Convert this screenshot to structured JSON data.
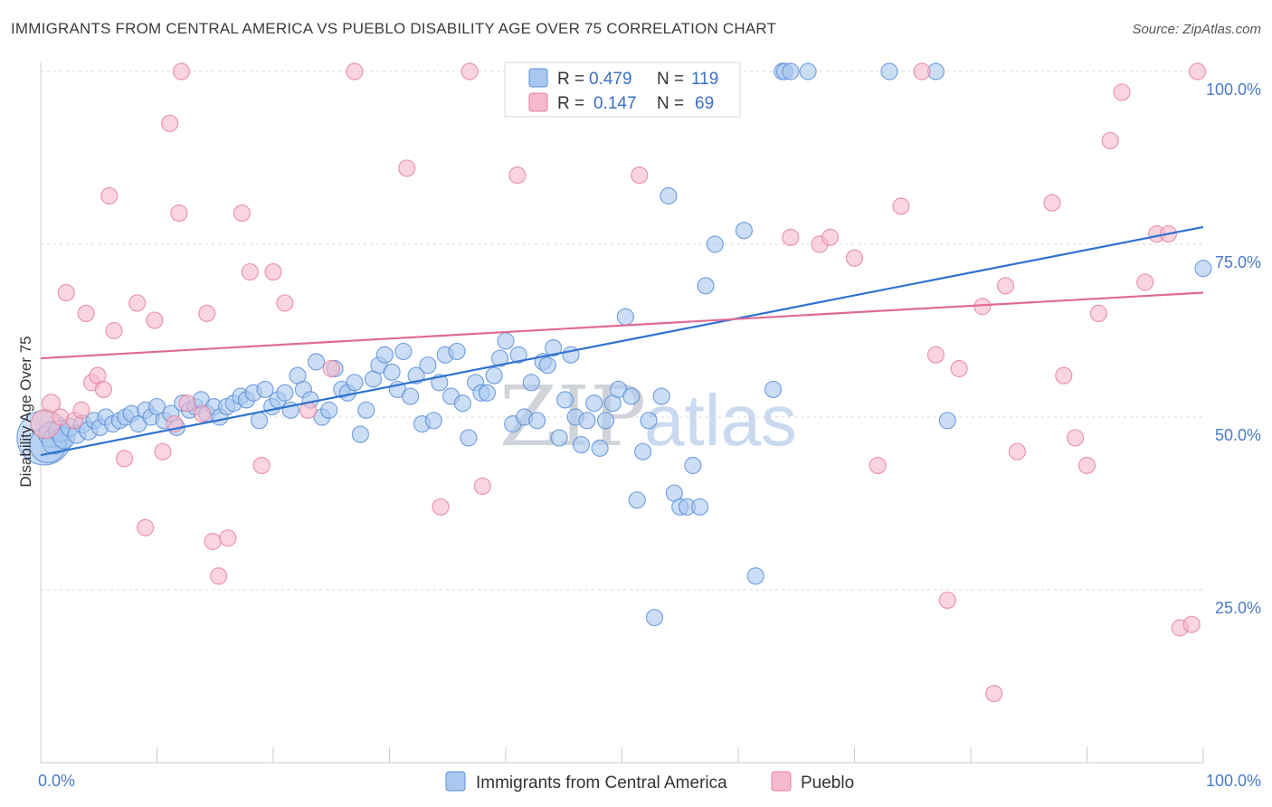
{
  "title": "IMMIGRANTS FROM CENTRAL AMERICA VS PUEBLO DISABILITY AGE OVER 75 CORRELATION CHART",
  "source": "Source: ZipAtlas.com",
  "watermark": {
    "zip": "ZIP",
    "atlas": "atlas"
  },
  "colors": {
    "blue_fill": "#a8c8f0",
    "blue_stroke": "#5b8fd6",
    "blue_line": "#2f72d0",
    "pink_fill": "#f7b9cc",
    "pink_stroke": "#e57fa0",
    "pink_line": "#e06a95",
    "grid": "#d9d9d9",
    "tick_text": "#4a7ac8"
  },
  "legend": {
    "r_label": "R =",
    "n_label": "N =",
    "series1": {
      "r": "0.479",
      "n": "119"
    },
    "series2": {
      "r": "0.147",
      "n": "69"
    }
  },
  "chart_data": {
    "type": "scatter",
    "xlabel": "",
    "ylabel": "Disability Age Over 75",
    "xlim": [
      0,
      100
    ],
    "ylim": [
      0,
      100
    ],
    "x_tick_labels": [
      "0.0%",
      "100.0%"
    ],
    "y_ticks": [
      25,
      50,
      75,
      100
    ],
    "y_tick_labels": [
      "25.0%",
      "50.0%",
      "75.0%",
      "100.0%"
    ],
    "grid": true,
    "legend_position": "bottom",
    "series": [
      {
        "name": "Immigrants from Central America",
        "color": "#a8c8f0",
        "trend": {
          "x": [
            0,
            100
          ],
          "y": [
            44.5,
            77.5
          ]
        },
        "points": [
          [
            0.3,
            47,
            30
          ],
          [
            0.6,
            46,
            20
          ],
          [
            0.9,
            47.5,
            14
          ],
          [
            1.2,
            46.5,
            14
          ],
          [
            1.6,
            48,
            12
          ],
          [
            2,
            47,
            12
          ],
          [
            2.5,
            48.5,
            10
          ],
          [
            3.1,
            47.5,
            10
          ],
          [
            3.6,
            49,
            10
          ],
          [
            4.1,
            48,
            10
          ],
          [
            4.6,
            49.5,
            9
          ],
          [
            5.1,
            48.5,
            9
          ],
          [
            5.6,
            50,
            9
          ],
          [
            6.2,
            49,
            9
          ],
          [
            6.8,
            49.5,
            9
          ],
          [
            7.3,
            50,
            9
          ],
          [
            7.8,
            50.5,
            9
          ],
          [
            8.4,
            49,
            9
          ],
          [
            9,
            51,
            9
          ],
          [
            9.5,
            50,
            9
          ],
          [
            10,
            51.5,
            9
          ],
          [
            10.6,
            49.5,
            9
          ],
          [
            11.2,
            50.5,
            9
          ],
          [
            11.7,
            48.5,
            9
          ],
          [
            12.2,
            52,
            9
          ],
          [
            12.8,
            51,
            9
          ],
          [
            13.3,
            51.5,
            9
          ],
          [
            13.8,
            52.5,
            9
          ],
          [
            14.3,
            50.5,
            9
          ],
          [
            14.9,
            51.5,
            9
          ],
          [
            15.4,
            50,
            9
          ],
          [
            16,
            51.5,
            9
          ],
          [
            16.6,
            52,
            9
          ],
          [
            17.2,
            53,
            9
          ],
          [
            17.7,
            52.5,
            9
          ],
          [
            18.3,
            53.5,
            9
          ],
          [
            18.8,
            49.5,
            9
          ],
          [
            19.3,
            54,
            9
          ],
          [
            19.9,
            51.5,
            9
          ],
          [
            20.4,
            52.5,
            9
          ],
          [
            21,
            53.5,
            9
          ],
          [
            21.5,
            51,
            9
          ],
          [
            22.1,
            56,
            9
          ],
          [
            22.6,
            54,
            9
          ],
          [
            23.2,
            52.5,
            9
          ],
          [
            23.7,
            58,
            9
          ],
          [
            24.2,
            50,
            9
          ],
          [
            24.8,
            51,
            9
          ],
          [
            25.3,
            57,
            9
          ],
          [
            25.9,
            54,
            9
          ],
          [
            26.4,
            53.5,
            9
          ],
          [
            27,
            55,
            9
          ],
          [
            27.5,
            47.5,
            9
          ],
          [
            28,
            51,
            9
          ],
          [
            28.6,
            55.5,
            9
          ],
          [
            29.1,
            57.5,
            9
          ],
          [
            29.6,
            59,
            9
          ],
          [
            30.2,
            56.5,
            9
          ],
          [
            30.7,
            54,
            9
          ],
          [
            31.2,
            59.5,
            9
          ],
          [
            31.8,
            53,
            9
          ],
          [
            32.3,
            56,
            9
          ],
          [
            32.8,
            49,
            9
          ],
          [
            33.3,
            57.5,
            9
          ],
          [
            33.8,
            49.5,
            9
          ],
          [
            34.3,
            55,
            9
          ],
          [
            34.8,
            59,
            9
          ],
          [
            35.3,
            53,
            9
          ],
          [
            35.8,
            59.5,
            9
          ],
          [
            36.3,
            52,
            9
          ],
          [
            36.8,
            47,
            9
          ],
          [
            37.4,
            55,
            9
          ],
          [
            37.9,
            53.5,
            9
          ],
          [
            38.4,
            53.5,
            9
          ],
          [
            39,
            56,
            9
          ],
          [
            39.5,
            58.5,
            9
          ],
          [
            40,
            61,
            9
          ],
          [
            40.6,
            49,
            9
          ],
          [
            41.1,
            59,
            9
          ],
          [
            41.6,
            50,
            9
          ],
          [
            42.2,
            55,
            9
          ],
          [
            42.7,
            49.5,
            9
          ],
          [
            43.2,
            58,
            9
          ],
          [
            43.6,
            57.5,
            9
          ],
          [
            44.1,
            60,
            9
          ],
          [
            44.6,
            47,
            9
          ],
          [
            45.1,
            52.5,
            9
          ],
          [
            45.6,
            59,
            9
          ],
          [
            46,
            50,
            9
          ],
          [
            46.5,
            46,
            9
          ],
          [
            47,
            49.5,
            9
          ],
          [
            47.6,
            52,
            9
          ],
          [
            48.1,
            45.5,
            9
          ],
          [
            48.6,
            49.5,
            9
          ],
          [
            49.2,
            52,
            9
          ],
          [
            49.7,
            54,
            9
          ],
          [
            50.3,
            64.5,
            9
          ],
          [
            50.8,
            53,
            9
          ],
          [
            51.3,
            38,
            9
          ],
          [
            51.8,
            45,
            9
          ],
          [
            52.3,
            49.5,
            9
          ],
          [
            52.8,
            21,
            9
          ],
          [
            53.4,
            53,
            9
          ],
          [
            54,
            82,
            9
          ],
          [
            54.5,
            39,
            9
          ],
          [
            55,
            37,
            9
          ],
          [
            55.6,
            37,
            9
          ],
          [
            56.1,
            43,
            9
          ],
          [
            56.7,
            37,
            9
          ],
          [
            57.2,
            69,
            9
          ],
          [
            58,
            75,
            9
          ],
          [
            59,
            100,
            9
          ],
          [
            60.5,
            77,
            9
          ],
          [
            61.5,
            27,
            9
          ],
          [
            63,
            54,
            9
          ],
          [
            63.8,
            100,
            9
          ],
          [
            64,
            100,
            9
          ],
          [
            64.5,
            100,
            9
          ],
          [
            66,
            100,
            9
          ],
          [
            73,
            100,
            9
          ],
          [
            77,
            100,
            9
          ],
          [
            78,
            49.5,
            9
          ],
          [
            100,
            71.5,
            9
          ]
        ]
      },
      {
        "name": "Pueblo",
        "color": "#f7b9cc",
        "trend": {
          "x": [
            0,
            100
          ],
          "y": [
            58.5,
            68
          ]
        },
        "points": [
          [
            0.4,
            49,
            16
          ],
          [
            0.9,
            52,
            10
          ],
          [
            1.7,
            50,
            9
          ],
          [
            2.2,
            68,
            9
          ],
          [
            2.9,
            49.5,
            9
          ],
          [
            3.5,
            51,
            9
          ],
          [
            3.9,
            65,
            9
          ],
          [
            4.4,
            55,
            9
          ],
          [
            4.9,
            56,
            9
          ],
          [
            5.4,
            54,
            9
          ],
          [
            5.9,
            82,
            9
          ],
          [
            6.3,
            62.5,
            9
          ],
          [
            7.2,
            44,
            9
          ],
          [
            8.3,
            66.5,
            9
          ],
          [
            9,
            34,
            9
          ],
          [
            9.8,
            64,
            9
          ],
          [
            10.5,
            45,
            9
          ],
          [
            11.1,
            92.5,
            9
          ],
          [
            11.5,
            49,
            9
          ],
          [
            11.9,
            79.5,
            9
          ],
          [
            12.1,
            100,
            9
          ],
          [
            12.6,
            52,
            9
          ],
          [
            13.9,
            50.5,
            9
          ],
          [
            14.3,
            65,
            9
          ],
          [
            14.8,
            32,
            9
          ],
          [
            15.3,
            27,
            9
          ],
          [
            16.1,
            32.5,
            9
          ],
          [
            17.3,
            79.5,
            9
          ],
          [
            18,
            71,
            9
          ],
          [
            19,
            43,
            9
          ],
          [
            20,
            71,
            9
          ],
          [
            21,
            66.5,
            9
          ],
          [
            23,
            51,
            9
          ],
          [
            25,
            57,
            9
          ],
          [
            27,
            100,
            9
          ],
          [
            31.5,
            86,
            9
          ],
          [
            34.4,
            37,
            9
          ],
          [
            36.9,
            100,
            9
          ],
          [
            38,
            40,
            9
          ],
          [
            41,
            85,
            9
          ],
          [
            51.5,
            85,
            9
          ],
          [
            58,
            96.5,
            9
          ],
          [
            64.5,
            76,
            9
          ],
          [
            67,
            75,
            9
          ],
          [
            67.9,
            76,
            9
          ],
          [
            70,
            73,
            9
          ],
          [
            72,
            43,
            9
          ],
          [
            74,
            80.5,
            9
          ],
          [
            75.8,
            100,
            9
          ],
          [
            77,
            59,
            9
          ],
          [
            78,
            23.5,
            9
          ],
          [
            79,
            57,
            9
          ],
          [
            81,
            66,
            9
          ],
          [
            82,
            10,
            9
          ],
          [
            83,
            69,
            9
          ],
          [
            84,
            45,
            9
          ],
          [
            87,
            81,
            9
          ],
          [
            88,
            56,
            9
          ],
          [
            89,
            47,
            9
          ],
          [
            90,
            43,
            9
          ],
          [
            91,
            65,
            9
          ],
          [
            92,
            90,
            9
          ],
          [
            93,
            97,
            9
          ],
          [
            95,
            69.5,
            9
          ],
          [
            96,
            76.5,
            9
          ],
          [
            97,
            76.5,
            9
          ],
          [
            98,
            19.5,
            9
          ],
          [
            99,
            20,
            9
          ],
          [
            99.5,
            100,
            9
          ]
        ]
      }
    ]
  }
}
